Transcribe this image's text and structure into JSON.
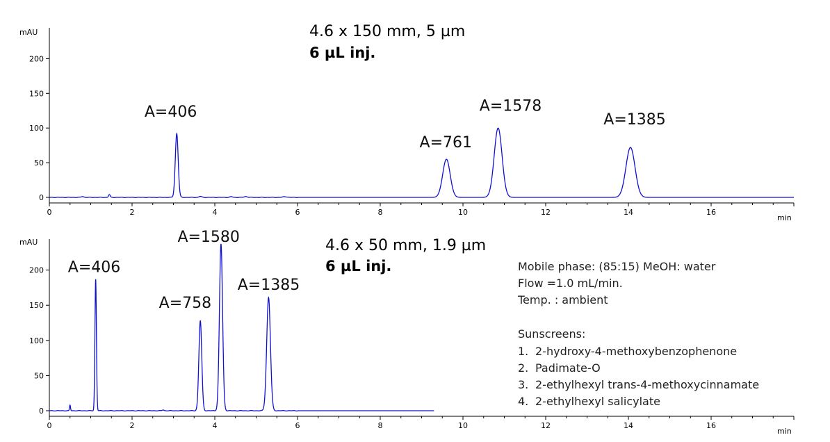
{
  "chart_data": [
    {
      "type": "line",
      "title": "4.6 x 150 mm, 5 µm",
      "subtitle": "6 µL inj.",
      "ylabel": "mAU",
      "xlabel": "min",
      "xlim": [
        0,
        18
      ],
      "ylim": [
        -5,
        240
      ],
      "xticks": [
        0,
        2,
        4,
        6,
        8,
        10,
        12,
        14,
        16
      ],
      "yticks": [
        0,
        50,
        100,
        150,
        200
      ],
      "run_end": 18,
      "peaks": [
        {
          "rt": 3.08,
          "height": 92,
          "width": 0.035,
          "label": "A=406",
          "label_x": 2.3,
          "label_y": 116
        },
        {
          "rt": 9.6,
          "height": 55,
          "width": 0.09,
          "label": "A=761",
          "label_x": 8.95,
          "label_y": 72
        },
        {
          "rt": 10.85,
          "height": 100,
          "width": 0.095,
          "label": "A=1578",
          "label_x": 10.4,
          "label_y": 125
        },
        {
          "rt": 14.05,
          "height": 72,
          "width": 0.11,
          "label": "A=1385",
          "label_x": 13.4,
          "label_y": 105
        }
      ],
      "minor_peaks": [
        {
          "rt": 1.45,
          "height": 4,
          "width": 0.02
        },
        {
          "rt": 0.8,
          "height": 1.2,
          "width": 0.03
        },
        {
          "rt": 3.65,
          "height": 1.5,
          "width": 0.03
        },
        {
          "rt": 4.4,
          "height": 1,
          "width": 0.03
        },
        {
          "rt": 4.75,
          "height": 1.2,
          "width": 0.04
        },
        {
          "rt": 5.7,
          "height": 1,
          "width": 0.05
        }
      ]
    },
    {
      "type": "line",
      "title": "4.6 x 50 mm,  1.9 µm",
      "subtitle": "6 µL inj.",
      "ylabel": "mAU",
      "xlabel": "min",
      "xlim": [
        0,
        18
      ],
      "ylim": [
        -5,
        240
      ],
      "xticks": [
        0,
        2,
        4,
        6,
        8,
        10,
        12,
        14,
        16
      ],
      "yticks": [
        0,
        50,
        100,
        150,
        200
      ],
      "run_end": 9.3,
      "peaks": [
        {
          "rt": 1.12,
          "height": 187,
          "width": 0.018,
          "label": "A=406",
          "label_x": 0.45,
          "label_y": 197
        },
        {
          "rt": 3.65,
          "height": 128,
          "width": 0.035,
          "label": "A=758",
          "label_x": 2.65,
          "label_y": 146
        },
        {
          "rt": 4.15,
          "height": 237,
          "width": 0.038,
          "label": "A=1580",
          "label_x": 3.1,
          "label_y": 240
        },
        {
          "rt": 5.3,
          "height": 161,
          "width": 0.045,
          "label": "A=1385",
          "label_x": 4.55,
          "label_y": 172
        }
      ],
      "minor_peaks": [
        {
          "rt": 0.5,
          "height": 8,
          "width": 0.012
        },
        {
          "rt": 2.75,
          "height": 1.2,
          "width": 0.02
        }
      ]
    }
  ],
  "conditions": {
    "lines": [
      "Mobile phase: (85:15) MeOH: water",
      "Flow =1.0  mL/min.",
      "Temp. : ambient"
    ],
    "heading": "Sunscreens:",
    "items": [
      {
        "num": "1.",
        "name": "2-hydroxy-4-methoxybenzophenone"
      },
      {
        "num": "2.",
        "name": "Padimate-O"
      },
      {
        "num": "3.",
        "name": "2-ethylhexyl trans-4-methoxycinnamate"
      },
      {
        "num": "4.",
        "name": "2-ethylhexyl salicylate"
      }
    ]
  },
  "colors": {
    "trace": "#1010d0",
    "axis": "#000000"
  }
}
